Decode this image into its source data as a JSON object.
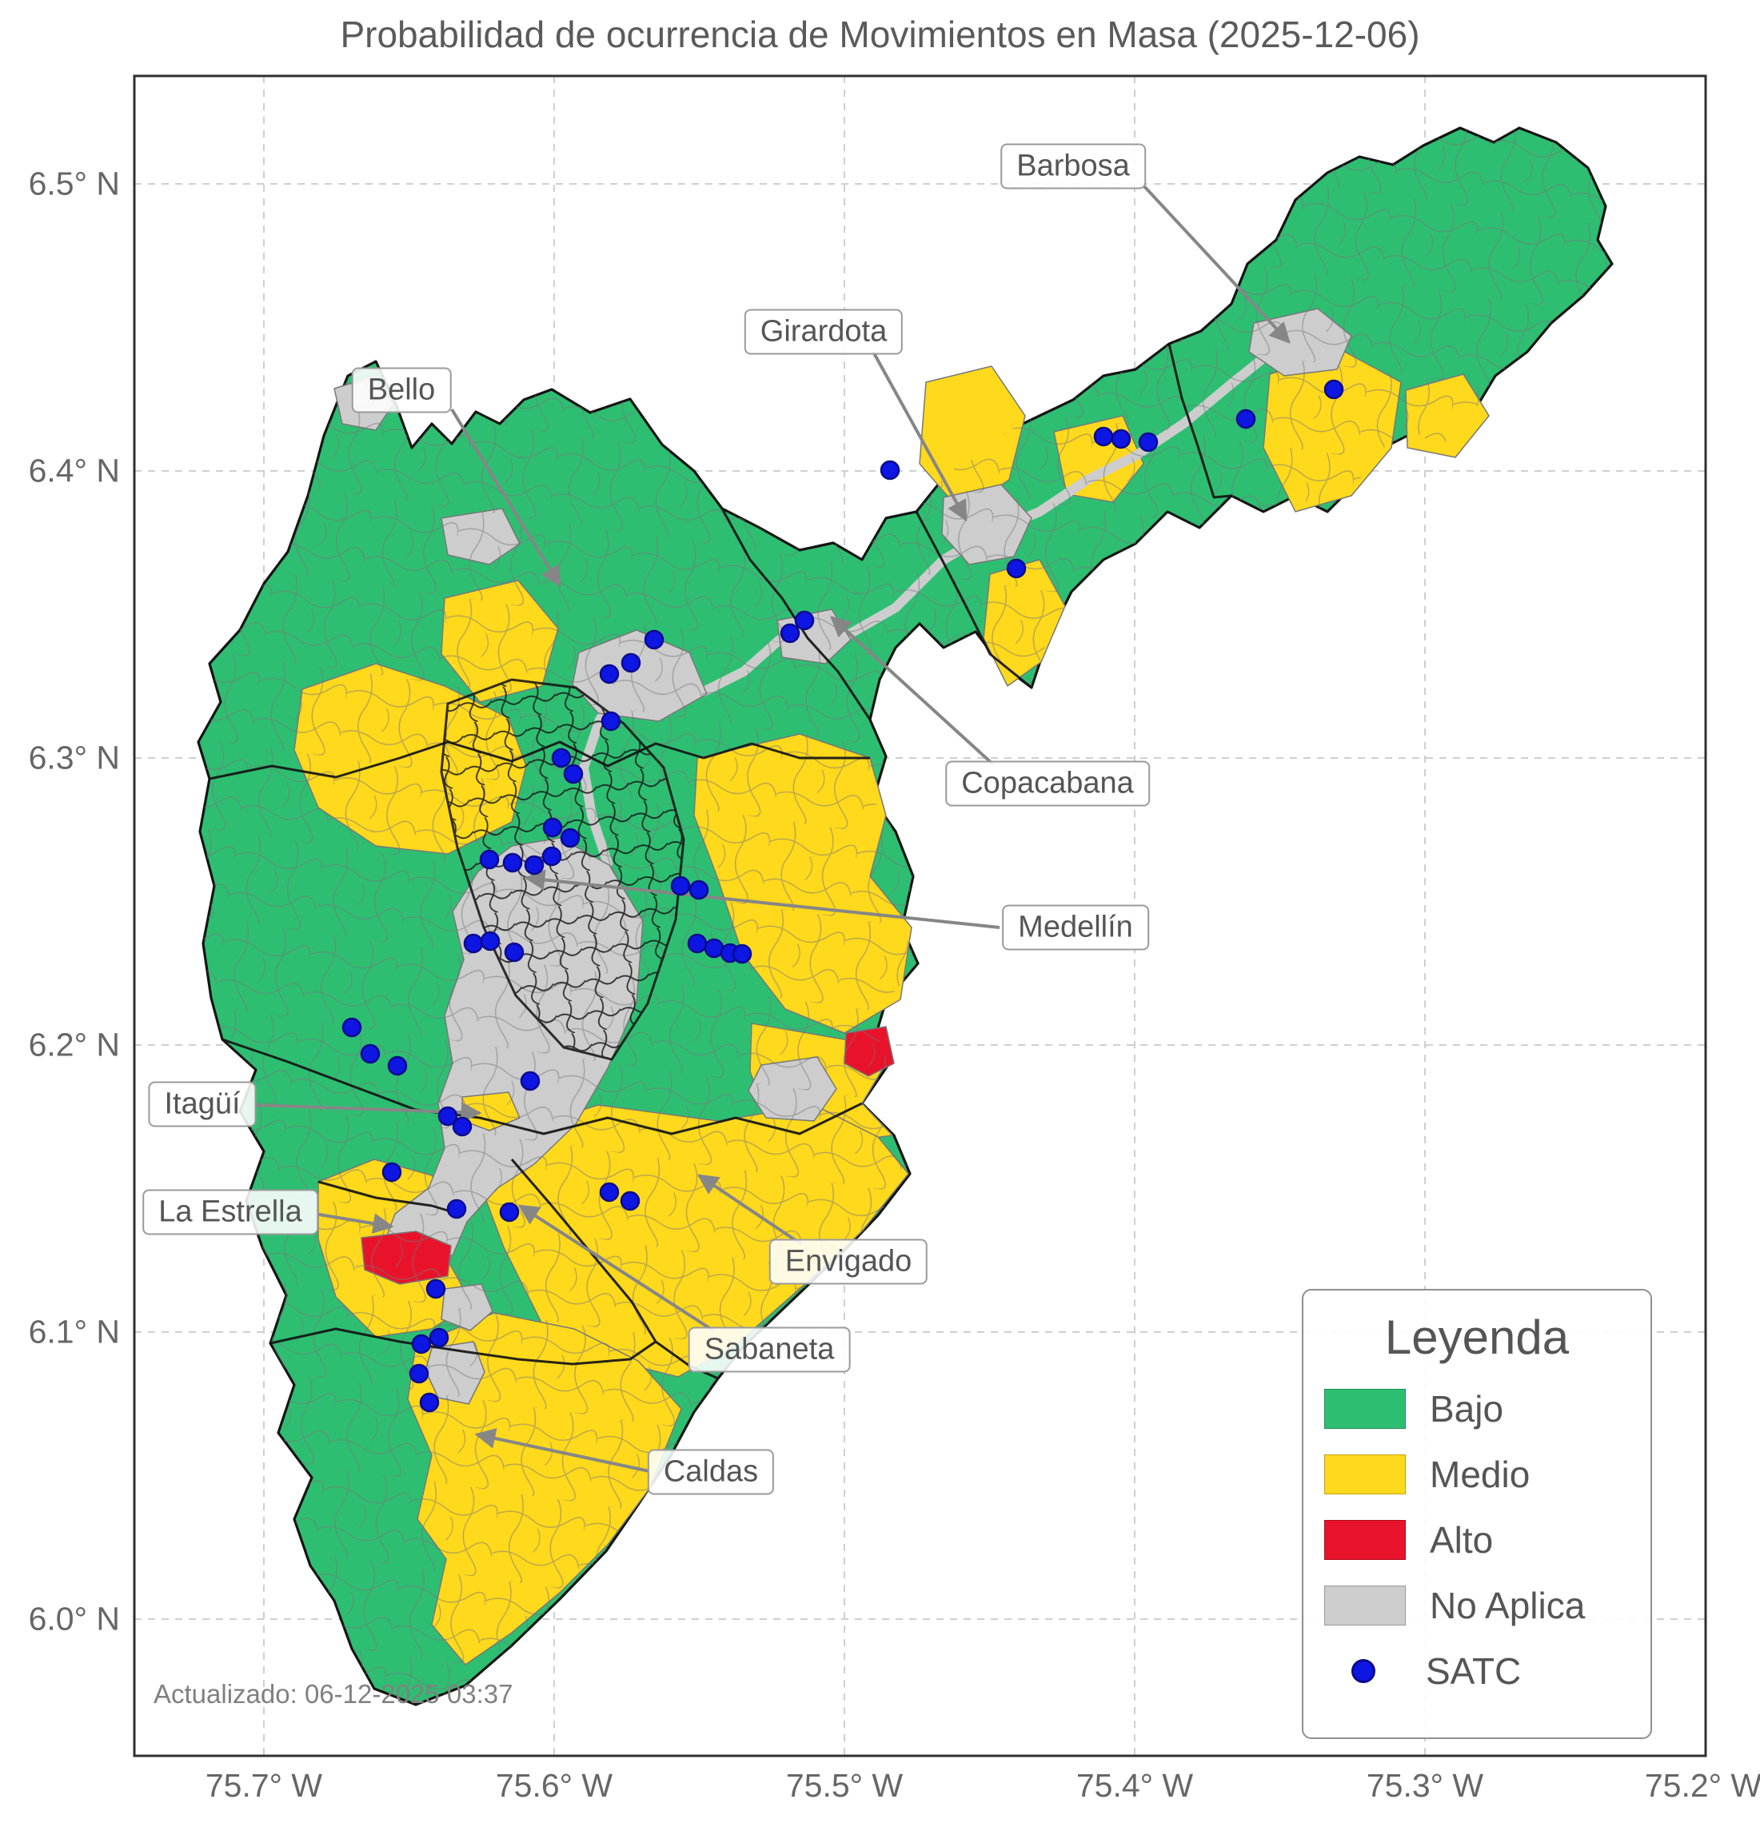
{
  "title": "Probabilidad de ocurrencia de Movimientos en Masa (2025-12-06)",
  "updated": "Actualizado: 06-12-2025 03:37",
  "axes": {
    "x_ticks": [
      "75.7° W",
      "75.6° W",
      "75.5° W",
      "75.4° W",
      "75.3° W",
      "75.2° W"
    ],
    "y_ticks": [
      "6.5° N",
      "6.4° N",
      "6.3° N",
      "6.2° N",
      "6.1° N",
      "6.0° N"
    ]
  },
  "legend": {
    "title": "Leyenda",
    "items": [
      {
        "label": "Bajo",
        "color": "#2EBE72",
        "marker": "patch"
      },
      {
        "label": "Medio",
        "color": "#FFD91C",
        "marker": "patch"
      },
      {
        "label": "Alto",
        "color": "#E8132B",
        "marker": "patch"
      },
      {
        "label": "No Aplica",
        "color": "#CDCDCD",
        "marker": "patch"
      },
      {
        "label": "SATC",
        "color": "#0E16E3",
        "marker": "dot"
      }
    ]
  },
  "annotations": [
    {
      "label": "Barbosa"
    },
    {
      "label": "Girardota"
    },
    {
      "label": "Bello"
    },
    {
      "label": "Copacabana"
    },
    {
      "label": "Medellín"
    },
    {
      "label": "Itagüí"
    },
    {
      "label": "La Estrella"
    },
    {
      "label": "Envigado"
    },
    {
      "label": "Sabaneta"
    },
    {
      "label": "Caldas"
    }
  ],
  "colors": {
    "bajo": "#2EBE72",
    "medio": "#FFD91C",
    "alto": "#E8132B",
    "no_aplica": "#CDCDCD",
    "satc": "#0E16E3",
    "grid": "#CFCFCF",
    "text": "#595959"
  },
  "satc_points": [
    [
      1668,
      487
    ],
    [
      1558,
      524
    ],
    [
      1380,
      546
    ],
    [
      1402,
      549
    ],
    [
      1436,
      553
    ],
    [
      1113,
      588
    ],
    [
      1271,
      711
    ],
    [
      1006,
      776
    ],
    [
      988,
      792
    ],
    [
      818,
      800
    ],
    [
      789,
      829
    ],
    [
      762,
      843
    ],
    [
      764,
      902
    ],
    [
      702,
      948
    ],
    [
      717,
      968
    ],
    [
      691,
      1035
    ],
    [
      713,
      1048
    ],
    [
      612,
      1075
    ],
    [
      641,
      1079
    ],
    [
      668,
      1082
    ],
    [
      690,
      1071
    ],
    [
      851,
      1108
    ],
    [
      874,
      1113
    ],
    [
      592,
      1180
    ],
    [
      613,
      1177
    ],
    [
      643,
      1191
    ],
    [
      872,
      1180
    ],
    [
      893,
      1186
    ],
    [
      913,
      1192
    ],
    [
      928,
      1193
    ],
    [
      440,
      1285
    ],
    [
      463,
      1318
    ],
    [
      497,
      1333
    ],
    [
      663,
      1352
    ],
    [
      560,
      1396
    ],
    [
      578,
      1409
    ],
    [
      490,
      1466
    ],
    [
      571,
      1512
    ],
    [
      637,
      1516
    ],
    [
      762,
      1491
    ],
    [
      788,
      1502
    ],
    [
      545,
      1612
    ],
    [
      527,
      1681
    ],
    [
      549,
      1673
    ],
    [
      524,
      1718
    ],
    [
      537,
      1754
    ]
  ]
}
